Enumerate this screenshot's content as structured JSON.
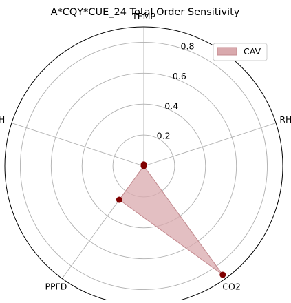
{
  "chart_data": {
    "type": "radar",
    "title": "A*CQY*CUE_24 Total Order Sensitivity",
    "axes": [
      "TEMP",
      "RH",
      "CO2",
      "PPFD",
      "H"
    ],
    "radial_ticks": [
      0.2,
      0.4,
      0.6,
      0.8
    ],
    "rlim": [
      0,
      0.9
    ],
    "grid": true,
    "legend_placement": "top-right",
    "series": [
      {
        "name": "CAV",
        "values": [
          0.01,
          0.0,
          0.87,
          0.27,
          0.0
        ],
        "fill_color": "#d9a9ad",
        "line_color": "#c48a8f",
        "marker_color": "#800000"
      }
    ]
  }
}
